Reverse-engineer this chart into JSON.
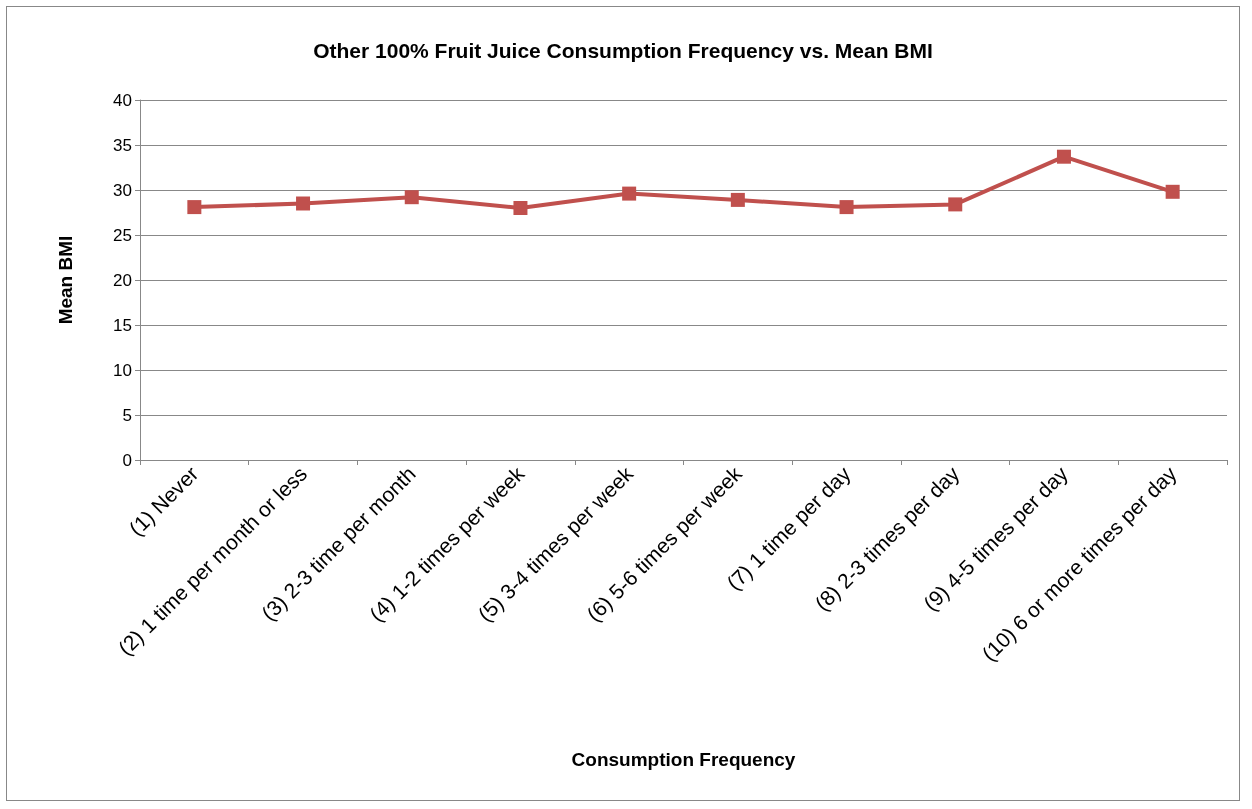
{
  "chart_data": {
    "type": "line",
    "title": "Other 100% Fruit Juice Consumption Frequency vs. Mean BMI",
    "xlabel": "Consumption Frequency",
    "ylabel": "Mean BMI",
    "categories": [
      "(1) Never",
      "(2) 1 time per month or less",
      "(3) 2-3 time per month",
      "(4) 1-2 times per week",
      "(5) 3-4 times per week",
      "(6) 5-6 times per week",
      "(7) 1 time per day",
      "(8) 2-3 times per day",
      "(9) 4-5 times per day",
      "(10) 6 or more times per day"
    ],
    "series": [
      {
        "color": "#c0504d",
        "values": [
          28.1,
          28.5,
          29.2,
          28.0,
          29.6,
          28.9,
          28.1,
          28.4,
          33.7,
          29.8
        ]
      }
    ],
    "ylim": [
      0,
      40
    ],
    "yticks": [
      0,
      5,
      10,
      15,
      20,
      25,
      30,
      35,
      40
    ],
    "grid": "y",
    "marker": "square",
    "line_style": "solid"
  }
}
